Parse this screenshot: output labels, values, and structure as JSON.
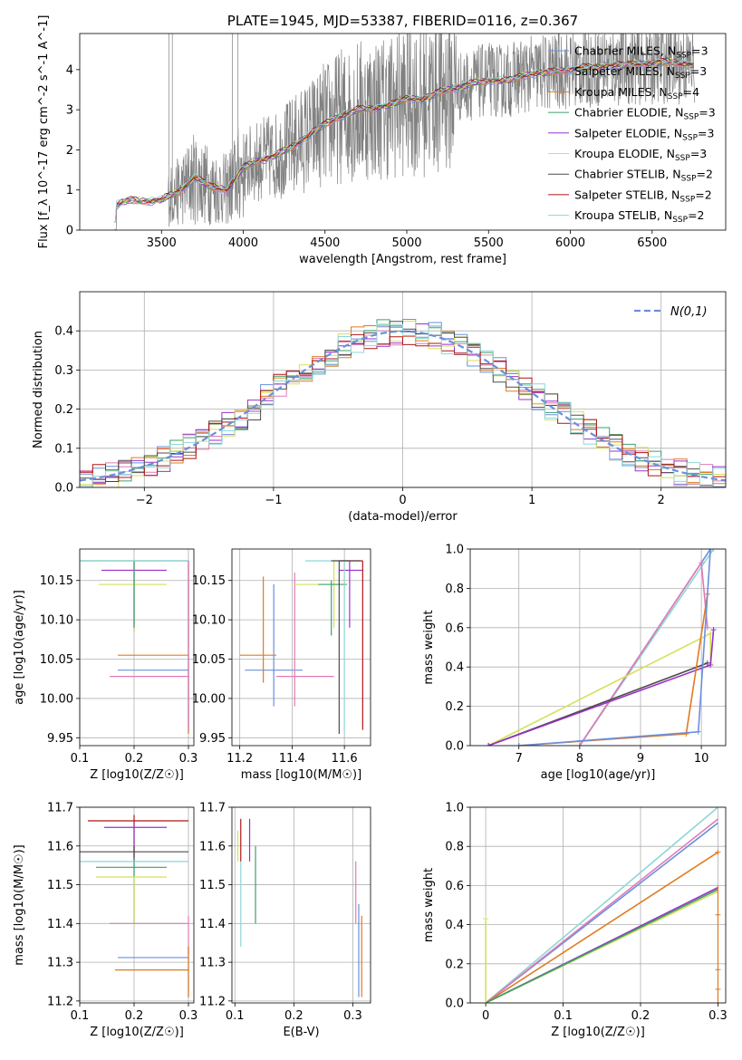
{
  "colors": [
    "#6a8fde",
    "#e07b20",
    "#6fbf8a",
    "#9b30c8",
    "#d6e05a",
    "#4d4d4d",
    "#b01515",
    "#8fd6d6",
    "#e07bb5",
    "#808080",
    "#3ca06a"
  ],
  "chart_data": [
    {
      "id": "spectrum",
      "type": "line",
      "title": "PLATE=1945, MJD=53387, FIBERID=0116, z=0.367",
      "xlabel": "wavelength [Angstrom, rest frame]",
      "ylabel": "Flux [f_λ 10^-17 erg cm^-2 s^-1 A^-1]",
      "xlim": [
        3000,
        6950
      ],
      "ylim": [
        0,
        4.9
      ],
      "xticks": [
        3500,
        4000,
        4500,
        5000,
        5500,
        6000,
        6500
      ],
      "yticks": [
        0,
        1,
        2,
        3,
        4
      ],
      "data_x": [
        3210,
        3300,
        3400,
        3500,
        3600,
        3700,
        3800,
        3900,
        4000,
        4100,
        4200,
        4300,
        4400,
        4500,
        4600,
        4700,
        4800,
        4900,
        5000,
        5100,
        5200,
        5300,
        5400,
        5500,
        5600,
        5700,
        5800,
        5900,
        6000,
        6100,
        6200,
        6300,
        6400,
        6500,
        6600,
        6700,
        6750
      ],
      "data_y": [
        0.6,
        0.75,
        0.72,
        0.75,
        0.95,
        1.3,
        1.1,
        1.0,
        1.55,
        1.75,
        1.85,
        2.1,
        2.35,
        2.65,
        2.85,
        3.0,
        3.05,
        3.1,
        3.3,
        3.25,
        3.45,
        3.55,
        3.65,
        3.75,
        3.7,
        3.85,
        3.9,
        3.95,
        4.0,
        4.05,
        4.1,
        4.1,
        4.15,
        4.15,
        4.2,
        4.15,
        4.1
      ],
      "legend_location": "right",
      "legend": [
        {
          "label": "Chabrier MILES, N",
          "sub": "SSP",
          "tail": "=3",
          "color": "#6a8fde"
        },
        {
          "label": "Salpeter MILES, N",
          "sub": "SSP",
          "tail": "=3",
          "color": "#e07bb5"
        },
        {
          "label": "Kroupa MILES, N",
          "sub": "SSP",
          "tail": "=4",
          "color": "#e07b20"
        },
        {
          "label": "Chabrier ELODIE, N",
          "sub": "SSP",
          "tail": "=3",
          "color": "#3ca06a"
        },
        {
          "label": "Salpeter ELODIE, N",
          "sub": "SSP",
          "tail": "=3",
          "color": "#9b30c8"
        },
        {
          "label": "Kroupa ELODIE, N",
          "sub": "SSP",
          "tail": "=3",
          "color": "#d6e05a"
        },
        {
          "label": "Chabrier STELIB, N",
          "sub": "SSP",
          "tail": "=2",
          "color": "#4d4d4d"
        },
        {
          "label": "Salpeter STELIB, N",
          "sub": "SSP",
          "tail": "=2",
          "color": "#b01515"
        },
        {
          "label": "Kroupa STELIB, N",
          "sub": "SSP",
          "tail": "=2",
          "color": "#8fd6d6"
        }
      ]
    },
    {
      "id": "residuals",
      "type": "line",
      "xlabel": "(data-model)/error",
      "ylabel": "Normed distribution",
      "xlim": [
        -2.5,
        2.5
      ],
      "ylim": [
        0,
        0.5
      ],
      "xticks": [
        -2,
        -1,
        0,
        1,
        2
      ],
      "yticks": [
        0.0,
        0.1,
        0.2,
        0.3,
        0.4
      ],
      "grid": true,
      "normal_label": "N(0,1)",
      "legend_location": "top-right"
    },
    {
      "id": "z-age",
      "type": "scatter",
      "xlabel": "Z [log10(Z/Z☉)]",
      "ylabel": "age  [log10(age/yr)]",
      "xlim": [
        0.1,
        0.31
      ],
      "ylim": [
        9.94,
        10.19
      ],
      "xticks": [
        0.1,
        0.2,
        0.3
      ],
      "yticks": [
        9.95,
        10.0,
        10.05,
        10.1,
        10.15
      ],
      "grid": true
    },
    {
      "id": "mass-age",
      "type": "scatter",
      "xlabel": "mass [log10(M/M☉)]",
      "ylabel": "",
      "xlim": [
        11.17,
        11.7
      ],
      "ylim": [
        9.94,
        10.19
      ],
      "xticks": [
        11.2,
        11.4,
        11.6
      ],
      "yticks": [
        9.95,
        10.0,
        10.05,
        10.1,
        10.15
      ],
      "grid": true
    },
    {
      "id": "age-weight",
      "type": "line",
      "xlabel": "age  [log10(age/yr)]",
      "ylabel": "mass weight",
      "xlim": [
        6.2,
        10.4
      ],
      "ylim": [
        0,
        1.0
      ],
      "xticks": [
        7,
        8,
        9,
        10
      ],
      "yticks": [
        0.0,
        0.2,
        0.4,
        0.6,
        0.8,
        1.0
      ],
      "grid": true
    },
    {
      "id": "z-mass",
      "type": "scatter",
      "xlabel": "Z [log10(Z/Z☉)]",
      "ylabel": "mass [log10(M/M☉)]",
      "xlim": [
        0.1,
        0.31
      ],
      "ylim": [
        11.195,
        11.7
      ],
      "xticks": [
        0.1,
        0.2,
        0.3
      ],
      "yticks": [
        11.2,
        11.3,
        11.4,
        11.5,
        11.6,
        11.7
      ],
      "grid": true
    },
    {
      "id": "ebv-mass",
      "type": "scatter",
      "xlabel": "E(B-V)",
      "ylabel": "",
      "xlim": [
        0.095,
        0.33
      ],
      "ylim": [
        11.195,
        11.7
      ],
      "xticks": [
        0.1,
        0.2,
        0.3
      ],
      "yticks": [
        11.2,
        11.3,
        11.4,
        11.5,
        11.6,
        11.7
      ],
      "grid": true
    },
    {
      "id": "z-weight",
      "type": "line",
      "xlabel": "Z [log10(Z/Z☉)]",
      "ylabel": "mass weight",
      "xlim": [
        -0.02,
        0.31
      ],
      "ylim": [
        0,
        1.0
      ],
      "xticks": [
        0.0,
        0.1,
        0.2,
        0.3
      ],
      "yticks": [
        0.0,
        0.2,
        0.4,
        0.6,
        0.8,
        1.0
      ],
      "grid": true
    }
  ]
}
